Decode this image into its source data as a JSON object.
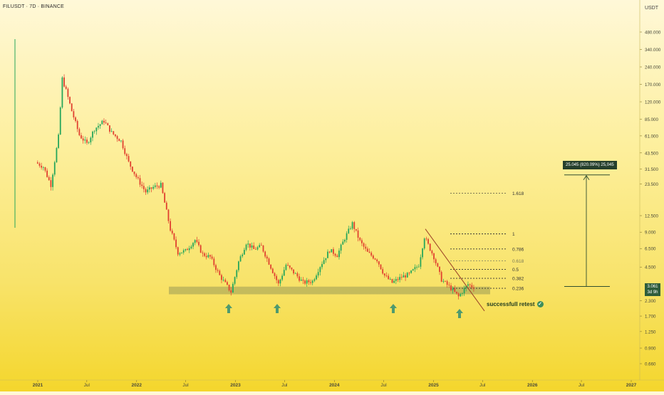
{
  "header": {
    "symbol_title": "FILUSDT · 7D · BINANCE",
    "currency": "USDT"
  },
  "chart_data": {
    "type": "candlestick",
    "x_ticks": [
      "2021",
      "Jul",
      "2022",
      "Jul",
      "2023",
      "Jul",
      "2024",
      "Jul",
      "2025",
      "Jul",
      "2026",
      "Jul",
      "2027"
    ],
    "y_ticks": [
      "480.000",
      "340.000",
      "240.000",
      "170.000",
      "120.000",
      "85.000",
      "61.000",
      "43.500",
      "31.500",
      "23.500",
      "12.500",
      "9.000",
      "6.500",
      "4.500",
      "2.300",
      "1.700",
      "1.250",
      "0.900",
      "0.660"
    ],
    "y_scale": "log",
    "fib_levels": [
      {
        "label": "1.618",
        "value": 19.5
      },
      {
        "label": "1",
        "value": 8.7
      },
      {
        "label": "0.786",
        "value": 6.45
      },
      {
        "label": "0.618",
        "value": 5.1
      },
      {
        "label": "0.5",
        "value": 4.3
      },
      {
        "label": "0.382",
        "value": 3.6
      },
      {
        "label": "0.236",
        "value": 2.95
      }
    ],
    "support_zone": {
      "low": 2.62,
      "high": 3.05
    },
    "current_price": {
      "line1": "3.061",
      "line2": "3d 9h"
    },
    "measure_label": "25.045 (820.09%) 25,045",
    "annotation": "successfull retest",
    "path": [
      [
        "2020-12-28",
        36
      ],
      [
        "2021-01-25",
        33
      ],
      [
        "2021-02-22",
        23
      ],
      [
        "2021-03-22",
        60
      ],
      [
        "2021-04-05",
        190
      ],
      [
        "2021-04-19",
        150
      ],
      [
        "2021-05-10",
        100
      ],
      [
        "2021-06-07",
        62
      ],
      [
        "2021-07-05",
        52
      ],
      [
        "2021-08-02",
        70
      ],
      [
        "2021-09-06",
        82
      ],
      [
        "2021-10-04",
        65
      ],
      [
        "2021-11-08",
        55
      ],
      [
        "2021-12-06",
        36
      ],
      [
        "2022-01-03",
        27
      ],
      [
        "2022-02-07",
        20
      ],
      [
        "2022-03-07",
        22
      ],
      [
        "2022-04-04",
        23
      ],
      [
        "2022-05-09",
        9.5
      ],
      [
        "2022-06-06",
        6.0
      ],
      [
        "2022-07-04",
        6.2
      ],
      [
        "2022-08-08",
        7.7
      ],
      [
        "2022-09-05",
        5.8
      ],
      [
        "2022-10-03",
        5.5
      ],
      [
        "2022-11-07",
        3.8
      ],
      [
        "2022-12-19",
        2.75
      ],
      [
        "2023-01-16",
        5.0
      ],
      [
        "2023-02-13",
        7.3
      ],
      [
        "2023-03-13",
        6.4
      ],
      [
        "2023-04-10",
        6.8
      ],
      [
        "2023-05-08",
        4.9
      ],
      [
        "2023-06-12",
        3.2
      ],
      [
        "2023-07-10",
        4.7
      ],
      [
        "2023-08-14",
        3.9
      ],
      [
        "2023-09-11",
        3.3
      ],
      [
        "2023-10-16",
        3.4
      ],
      [
        "2023-11-13",
        4.6
      ],
      [
        "2023-12-18",
        6.3
      ],
      [
        "2024-01-15",
        5.7
      ],
      [
        "2024-02-12",
        8.0
      ],
      [
        "2024-03-11",
        10.7
      ],
      [
        "2024-04-08",
        7.5
      ],
      [
        "2024-05-06",
        6.0
      ],
      [
        "2024-06-10",
        5.2
      ],
      [
        "2024-07-08",
        3.8
      ],
      [
        "2024-08-05",
        3.3
      ],
      [
        "2024-09-09",
        3.7
      ],
      [
        "2024-10-07",
        3.9
      ],
      [
        "2024-11-11",
        4.7
      ],
      [
        "2024-12-02",
        8.2
      ],
      [
        "2025-01-06",
        5.5
      ],
      [
        "2025-02-03",
        3.5
      ],
      [
        "2025-03-10",
        2.95
      ],
      [
        "2025-04-07",
        2.5
      ],
      [
        "2025-05-12",
        3.2
      ],
      [
        "2025-05-26",
        3.06
      ]
    ]
  }
}
